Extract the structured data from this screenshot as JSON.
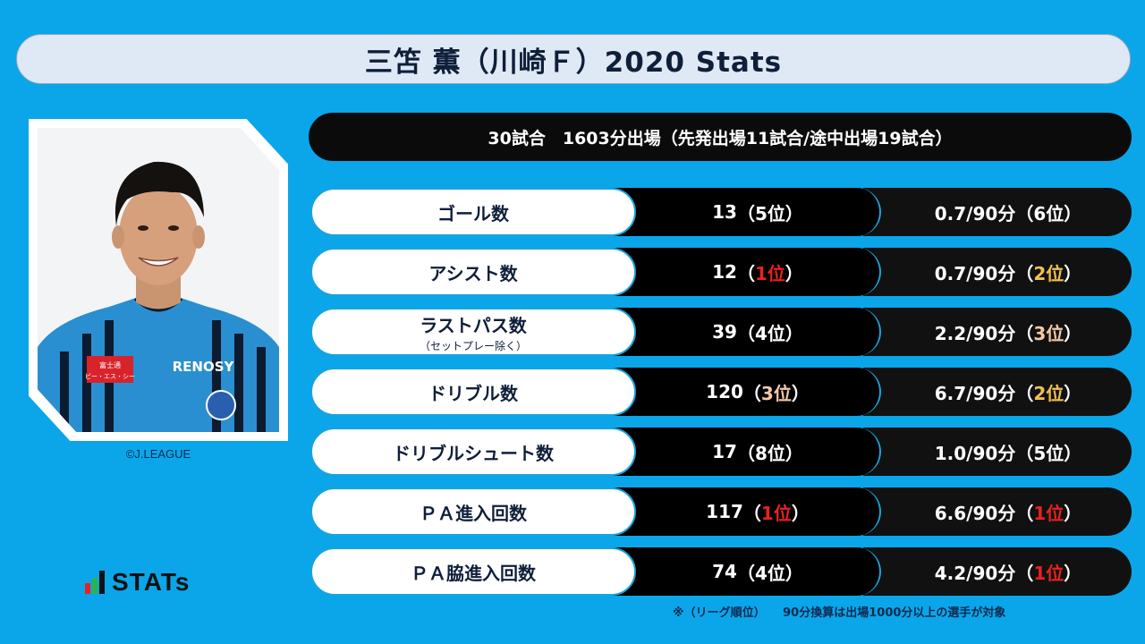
{
  "title": "三笘 薫（川崎Ｆ）2020 Stats",
  "summary": "30試合　1603分出場（先発出場11試合/途中出場19試合）",
  "copyright": "©J.LEAGUE",
  "logo": {
    "text": "STATs",
    "bar_colors": [
      "#e8221e",
      "#2db34a",
      "#111111"
    ]
  },
  "footnote": "※（リーグ順位）　　90分換算は出場1000分以上の選手が対象",
  "colors": {
    "background": "#0aa6e9",
    "rank_red": "#e8221e",
    "rank_gold": "#f2c14e",
    "rank_bronze": "#f5c9a6"
  },
  "rows": [
    {
      "label": "ゴール数",
      "sublabel": "",
      "total_value": "13",
      "total_rank": "5位",
      "per90_value": "0.7/90分",
      "per90_rank": "6位"
    },
    {
      "label": "アシスト数",
      "sublabel": "",
      "total_value": "12",
      "total_rank": "1位",
      "per90_value": "0.7/90分",
      "per90_rank": "2位"
    },
    {
      "label": "ラストパス数",
      "sublabel": "（セットプレー除く）",
      "total_value": "39",
      "total_rank": "4位",
      "per90_value": "2.2/90分",
      "per90_rank": "3位"
    },
    {
      "label": "ドリブル数",
      "sublabel": "",
      "total_value": "120",
      "total_rank": "3位",
      "per90_value": "6.7/90分",
      "per90_rank": "2位"
    },
    {
      "label": "ドリブルシュート数",
      "sublabel": "",
      "total_value": "17",
      "total_rank": "8位",
      "per90_value": "1.0/90分",
      "per90_rank": "5位"
    },
    {
      "label": "ＰＡ進入回数",
      "sublabel": "",
      "total_value": "117",
      "total_rank": "1位",
      "per90_value": "6.6/90分",
      "per90_rank": "1位"
    },
    {
      "label": "ＰＡ脇進入回数",
      "sublabel": "",
      "total_value": "74",
      "total_rank": "4位",
      "per90_value": "4.2/90分",
      "per90_rank": "1位"
    }
  ]
}
